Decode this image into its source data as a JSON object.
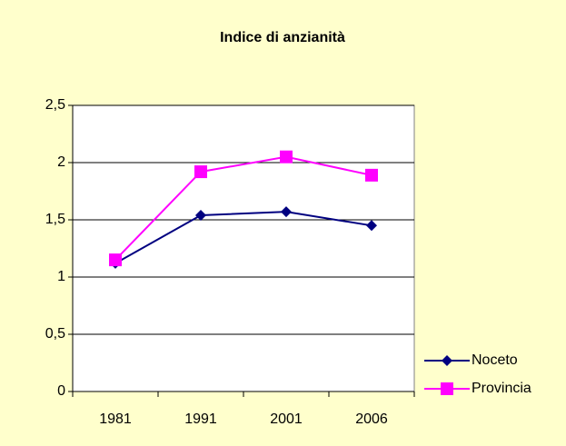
{
  "chart_data": {
    "type": "line",
    "title": "Indice di anzianità",
    "categories": [
      "1981",
      "1991",
      "2001",
      "2006"
    ],
    "series": [
      {
        "name": "Noceto",
        "color": "#000080",
        "marker": "diamond",
        "values": [
          1.12,
          1.54,
          1.57,
          1.45
        ]
      },
      {
        "name": "Provincia",
        "color": "#ff00ff",
        "marker": "square",
        "values": [
          1.15,
          1.92,
          2.05,
          1.89
        ]
      }
    ],
    "ylim": [
      0,
      2.5
    ],
    "yticks": [
      0,
      {
        "value": 0.5,
        "label": "0,5"
      },
      1,
      {
        "value": 1.5,
        "label": "1,5"
      },
      2,
      {
        "value": 2.5,
        "label": "2,5"
      }
    ],
    "grid": true,
    "legend": "right"
  }
}
